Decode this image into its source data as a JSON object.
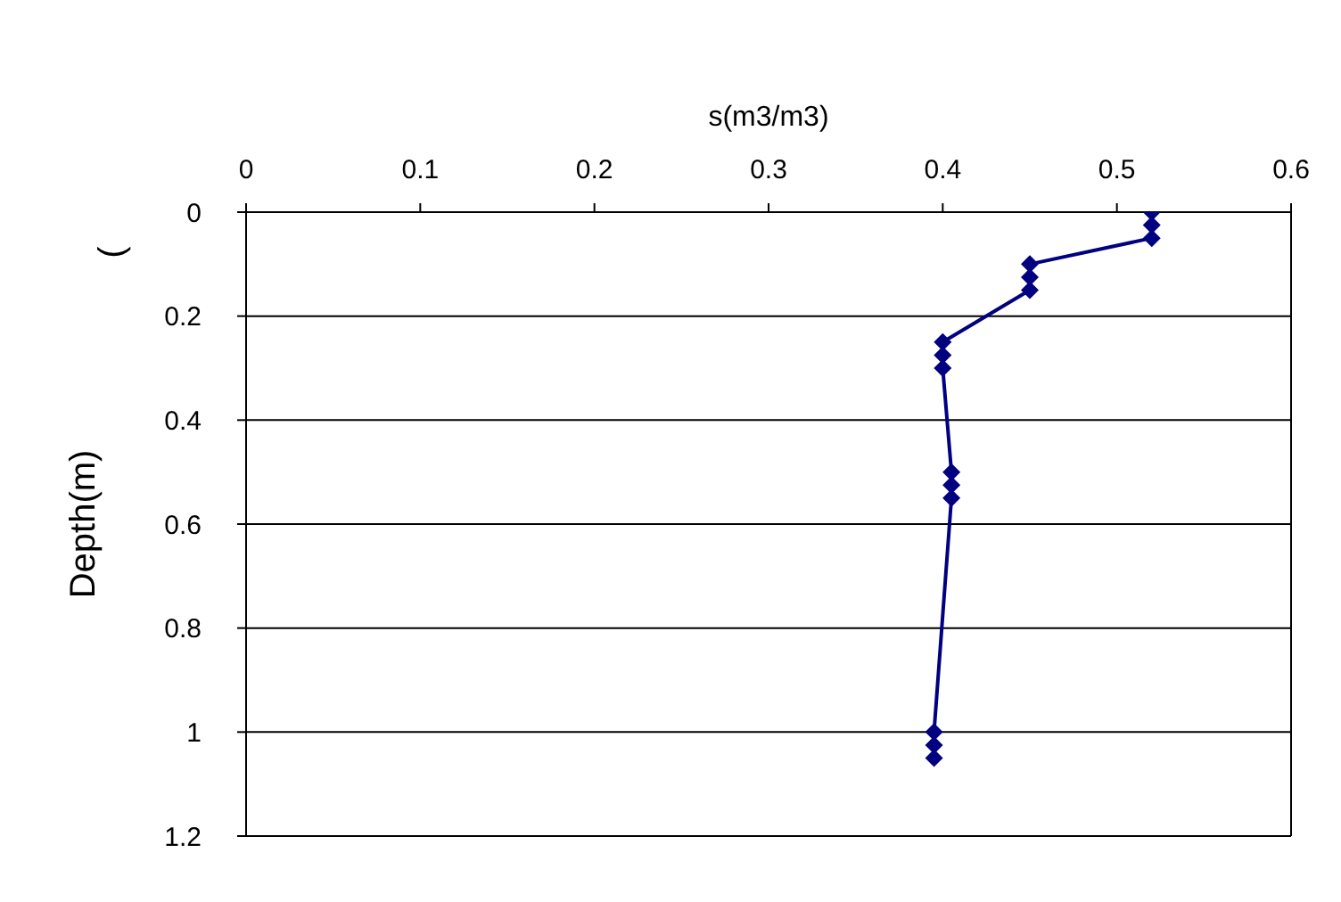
{
  "chart_data": {
    "type": "line",
    "xlabel": "s(m3/m3)",
    "ylabel": "Depth(m)",
    "annotations": [
      "("
    ],
    "series": [
      {
        "color": "#000080",
        "x": [
          0.52,
          0.52,
          0.52,
          0.45,
          0.45,
          0.45,
          0.4,
          0.4,
          0.4,
          0.405,
          0.405,
          0.405,
          0.395,
          0.395,
          0.395
        ],
        "values": [
          0,
          0.025,
          0.05,
          0.1,
          0.125,
          0.15,
          0.25,
          0.275,
          0.3,
          0.5,
          0.525,
          0.55,
          1,
          1.025,
          1.05
        ]
      }
    ],
    "xlim": [
      0,
      0.6
    ],
    "xticks": [
      0,
      0.1,
      0.2,
      0.3,
      0.4,
      0.5,
      0.6
    ],
    "ylim": [
      1.2,
      0
    ],
    "yticks": [
      0,
      0.2,
      0.4,
      0.6,
      0.8,
      1,
      1.2
    ],
    "grid": "y",
    "marker": "diamond",
    "line_style": "solid"
  }
}
